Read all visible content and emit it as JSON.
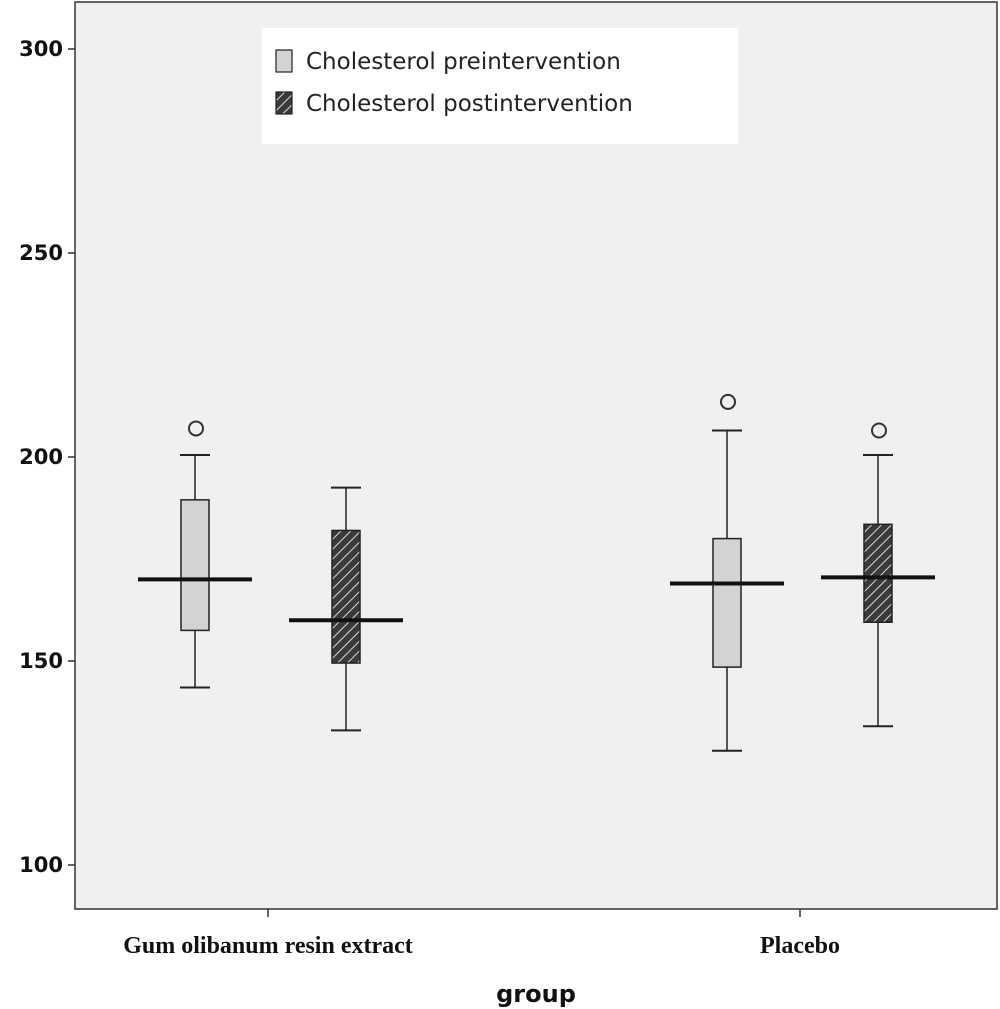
{
  "chart_data": {
    "type": "boxplot",
    "title": "",
    "xlabel": "group",
    "ylabel": "",
    "ylim": [
      90,
      311
    ],
    "yticks": [
      100,
      150,
      200,
      250,
      300
    ],
    "grid": false,
    "legend_position": "top-left",
    "categories": [
      "Gum olibanum resin extract",
      "Placebo"
    ],
    "series": [
      {
        "name": "Cholesterol preintervention",
        "fill": "#d3d3d3",
        "pattern": "solid",
        "boxes": [
          {
            "category": "Gum olibanum resin extract",
            "whisker_low": 143.5,
            "q1": 157.5,
            "median": 170,
            "q3": 189.5,
            "whisker_high": 200.5,
            "outliers": [
              207
            ]
          },
          {
            "category": "Placebo",
            "whisker_low": 128,
            "q1": 148.5,
            "median": 169,
            "q3": 180,
            "whisker_high": 206.5,
            "outliers": [
              213.5
            ]
          }
        ]
      },
      {
        "name": "Cholesterol postintervention",
        "fill": "#3a3a3a",
        "pattern": "hatched",
        "boxes": [
          {
            "category": "Gum olibanum resin extract",
            "whisker_low": 133,
            "q1": 149.5,
            "median": 160,
            "q3": 182,
            "whisker_high": 192.5,
            "outliers": []
          },
          {
            "category": "Placebo",
            "whisker_low": 134,
            "q1": 159.5,
            "median": 170.5,
            "q3": 183.5,
            "whisker_high": 200.5,
            "outliers": [
              206.5
            ]
          }
        ]
      }
    ]
  }
}
